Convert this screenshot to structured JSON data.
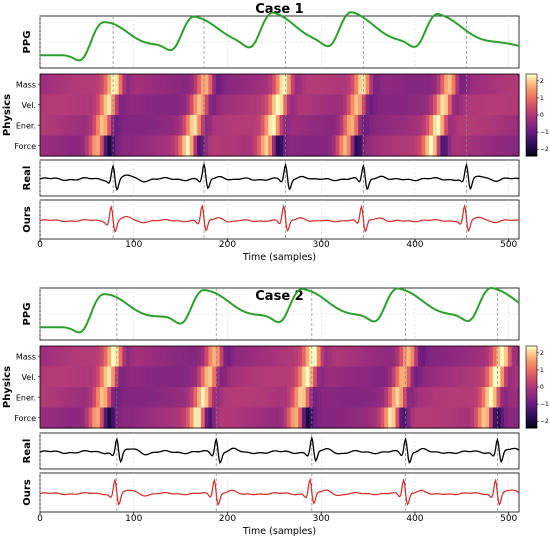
{
  "chart_data": [
    {
      "type": "line",
      "title": "Case 1",
      "panels": {
        "ppg": {
          "ylabel": "PPG"
        },
        "physics": {
          "ylabel": "Physics",
          "row_labels": [
            "Mass",
            "Vel.",
            "Ener.",
            "Force"
          ],
          "colormap": "magma",
          "colorbar_ticks": [
            "2",
            "1",
            "0",
            "−1",
            "−2"
          ],
          "clim": [
            -2.4,
            2.4
          ]
        },
        "real": {
          "ylabel": "Real",
          "color": "#000000"
        },
        "ours": {
          "ylabel": "Ours",
          "color": "#d62728"
        }
      },
      "ppg_color": "#2ca02c",
      "peaks_ppg": [
        68,
        165,
        249,
        333,
        425
      ],
      "beats_ecg": [
        78,
        175,
        262,
        345,
        455
      ],
      "xlabel": "Time (samples)",
      "xlim": [
        0,
        511
      ],
      "xticks": [
        "0",
        "100",
        "200",
        "300",
        "400",
        "500"
      ],
      "grid": true
    },
    {
      "type": "line",
      "title": "Case 2",
      "panels": {
        "ppg": {
          "ylabel": "PPG"
        },
        "physics": {
          "ylabel": "Physics",
          "row_labels": [
            "Mass",
            "Vel.",
            "Ener.",
            "Force"
          ],
          "colormap": "magma",
          "colorbar_ticks": [
            "2",
            "1",
            "0",
            "−1",
            "−2"
          ],
          "clim": [
            -2.4,
            2.4
          ]
        },
        "real": {
          "ylabel": "Real",
          "color": "#000000"
        },
        "ours": {
          "ylabel": "Ours",
          "color": "#d62728"
        }
      },
      "ppg_color": "#2ca02c",
      "peaks_ppg": [
        68,
        175,
        280,
        382,
        482
      ],
      "beats_ecg": [
        82,
        188,
        290,
        390,
        488
      ],
      "xlabel": "Time (samples)",
      "xlim": [
        0,
        511
      ],
      "xticks": [
        "0",
        "100",
        "200",
        "300",
        "400",
        "500"
      ],
      "grid": true
    }
  ]
}
